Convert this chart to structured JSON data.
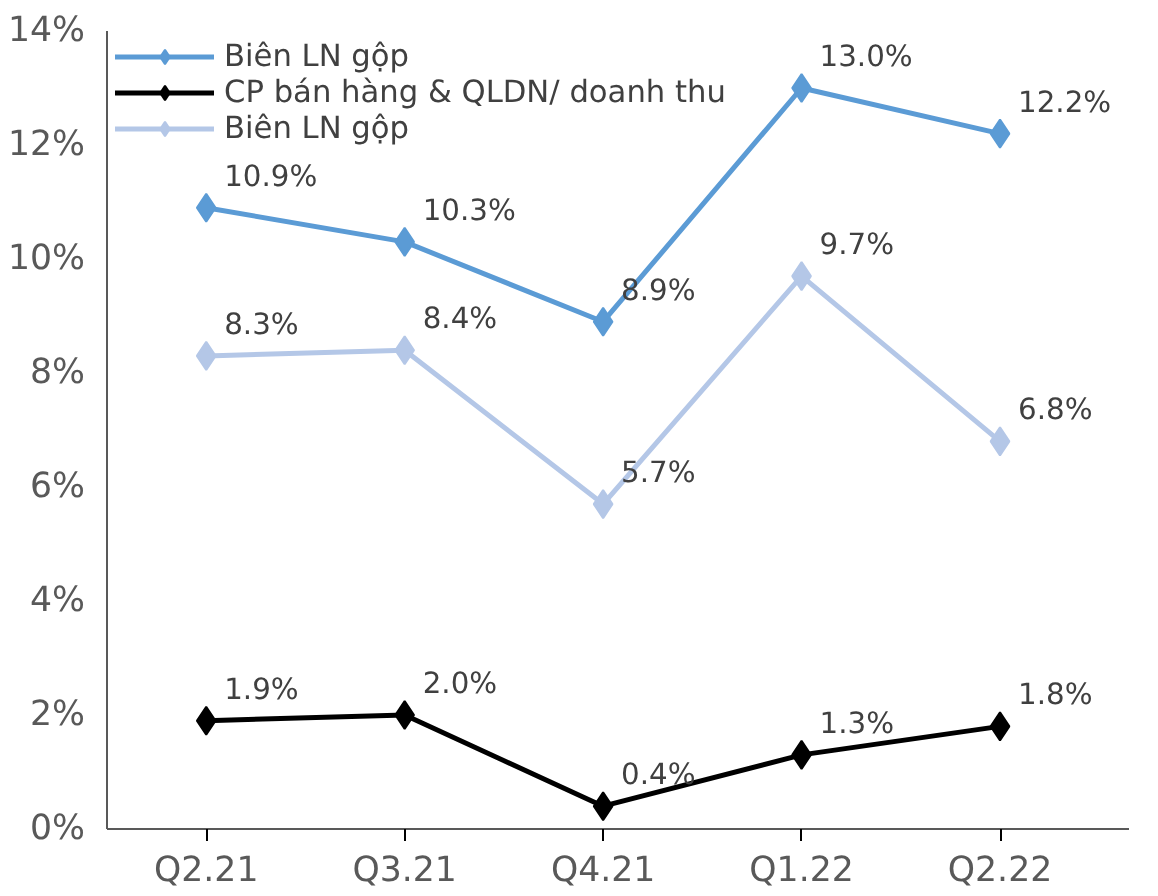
{
  "chart_data": {
    "type": "line",
    "categories": [
      "Q2.21",
      "Q3.21",
      "Q4.21",
      "Q1.22",
      "Q2.22"
    ],
    "series": [
      {
        "name": "Biên LN gộp",
        "color": "#5b9bd5",
        "values": [
          10.9,
          10.3,
          8.9,
          13.0,
          12.2
        ],
        "value_labels": [
          "10.9%",
          "10.3%",
          "8.9%",
          "13.0%",
          "12.2%"
        ]
      },
      {
        "name": "CP bán hàng & QLDN/ doanh thu",
        "color": "#000000",
        "values": [
          1.9,
          2.0,
          0.4,
          1.3,
          1.8
        ],
        "value_labels": [
          "1.9%",
          "2.0%",
          "0.4%",
          "1.3%",
          "1.8%"
        ]
      },
      {
        "name": "Biên LN gộp",
        "color": "#b4c7e7",
        "values": [
          8.3,
          8.4,
          5.7,
          9.7,
          6.8
        ],
        "value_labels": [
          "8.3%",
          "8.4%",
          "5.7%",
          "9.7%",
          "6.8%"
        ]
      }
    ],
    "ylim": [
      0,
      14
    ],
    "yticks": [
      {
        "value": 0,
        "label": "0%"
      },
      {
        "value": 2,
        "label": "2%"
      },
      {
        "value": 4,
        "label": "4%"
      },
      {
        "value": 6,
        "label": "6%"
      },
      {
        "value": 8,
        "label": "8%"
      },
      {
        "value": 10,
        "label": "10%"
      },
      {
        "value": 12,
        "label": "12%"
      },
      {
        "value": 14,
        "label": "14%"
      }
    ],
    "marker": "diamond",
    "line_style": "solid",
    "grid": false,
    "legend": "top"
  }
}
